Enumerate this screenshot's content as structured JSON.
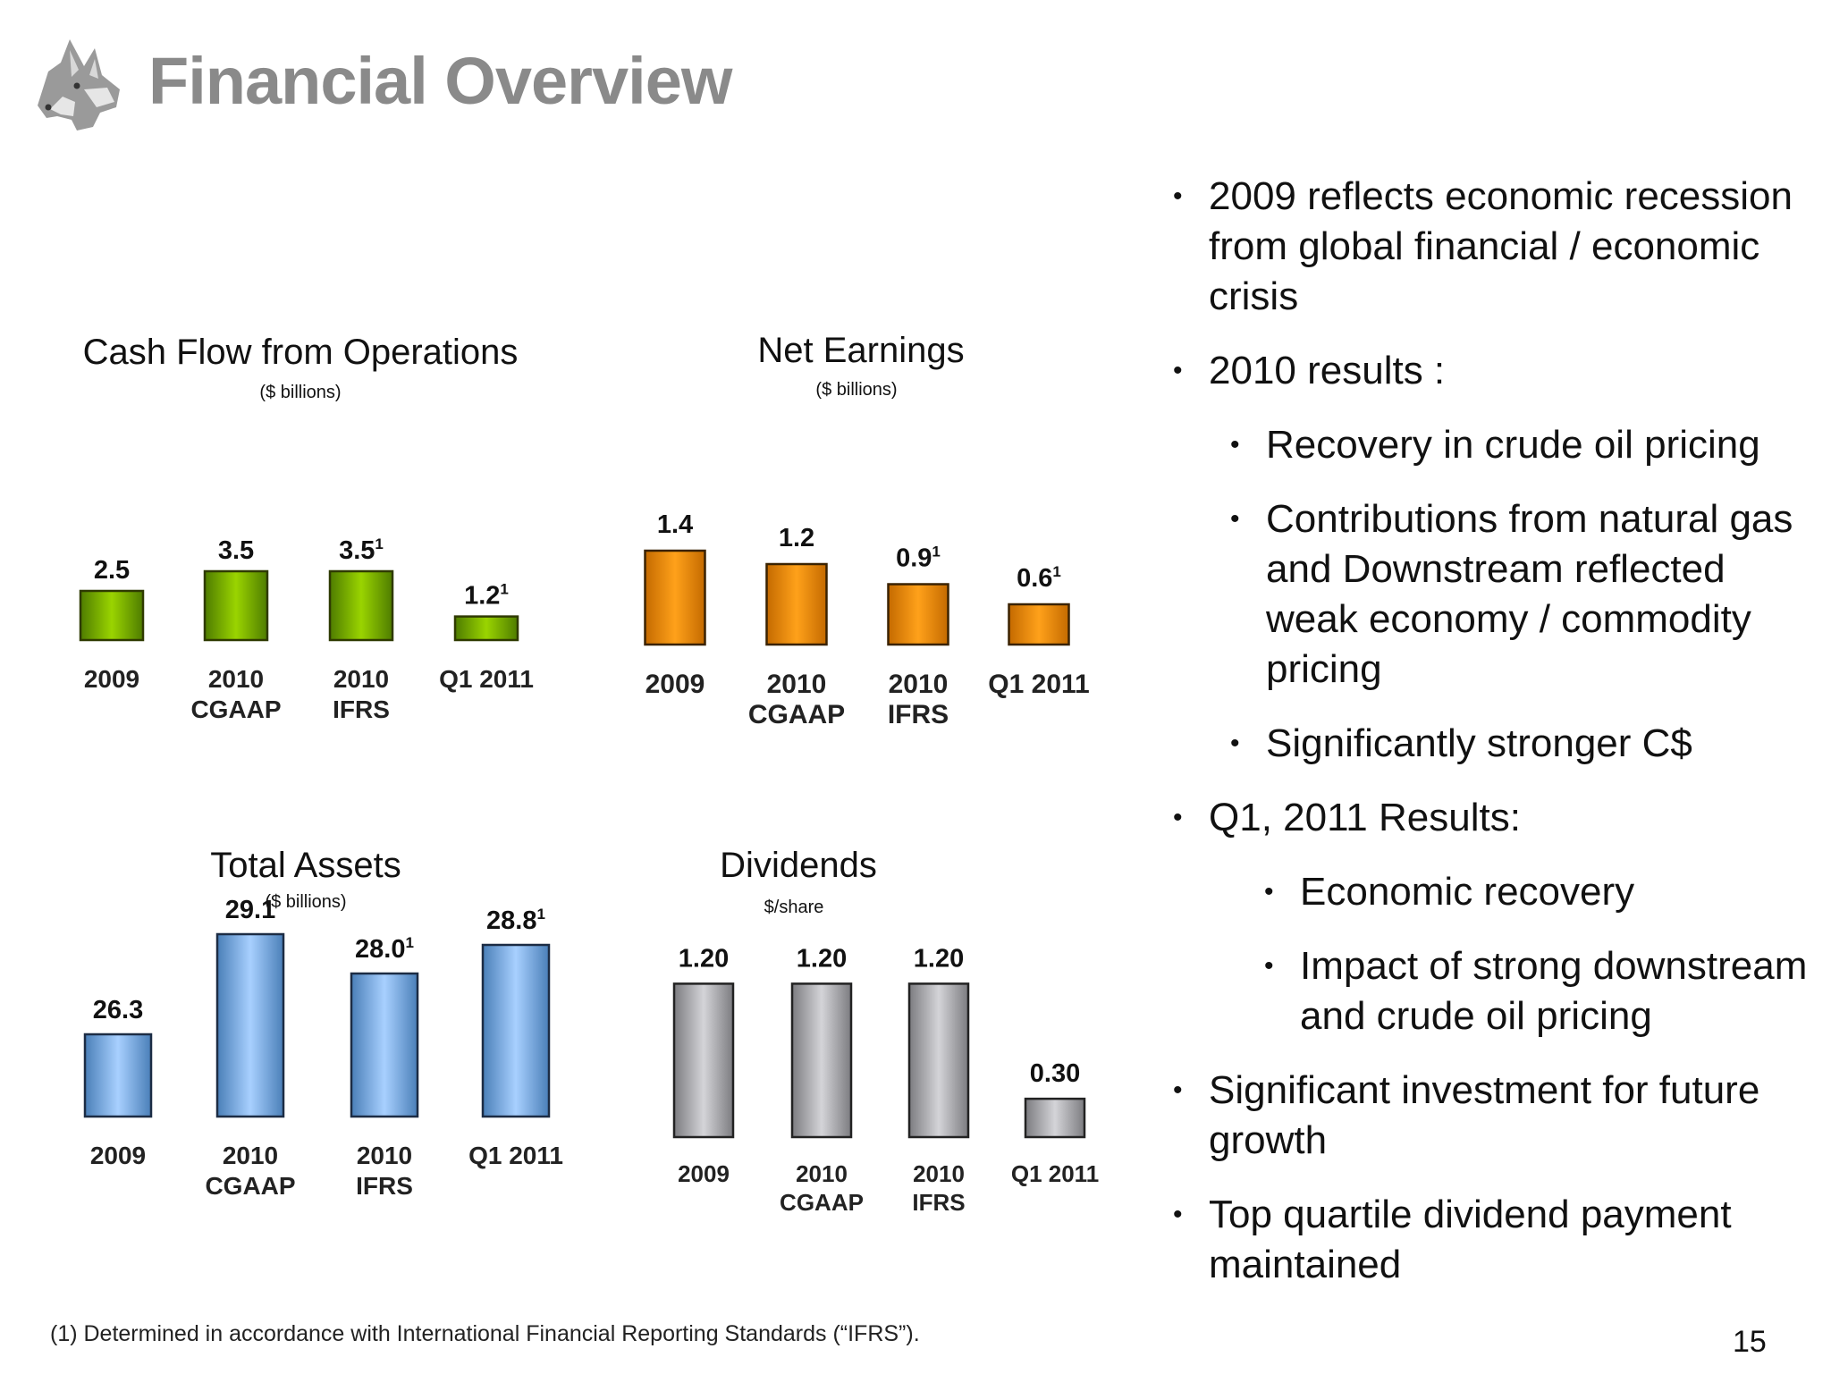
{
  "title": "Financial Overview",
  "charts": [
    {
      "id": "cfo",
      "title": "Cash Flow from Operations",
      "unit": "($ billions)",
      "labels": [
        "2.5",
        "3.5",
        "3.5",
        "1.2"
      ],
      "footnote_marks": [
        "",
        "",
        "1",
        "1"
      ],
      "categories": [
        [
          "2009"
        ],
        [
          "2010",
          "CGAAP"
        ],
        [
          "2010",
          "IFRS"
        ],
        [
          "Q1 2011"
        ]
      ]
    },
    {
      "id": "ne",
      "title": "Net Earnings",
      "unit": "($ billions)",
      "labels": [
        "1.4",
        "1.2",
        "0.9",
        "0.6"
      ],
      "footnote_marks": [
        "",
        "",
        "1",
        "1"
      ],
      "categories": [
        [
          "2009"
        ],
        [
          "2010",
          "CGAAP"
        ],
        [
          "2010",
          "IFRS"
        ],
        [
          "Q1 2011"
        ]
      ]
    },
    {
      "id": "ta",
      "title": "Total Assets",
      "unit": "($ billions)",
      "labels": [
        "26.3",
        "29.1",
        "28.0",
        "28.8"
      ],
      "footnote_marks": [
        "",
        "",
        "1",
        "1"
      ],
      "categories": [
        [
          "2009"
        ],
        [
          "2010",
          "CGAAP"
        ],
        [
          "2010",
          "IFRS"
        ],
        [
          "Q1 2011"
        ]
      ]
    },
    {
      "id": "div",
      "title": "Dividends",
      "unit": "$/share",
      "labels": [
        "1.20",
        "1.20",
        "1.20",
        "0.30"
      ],
      "footnote_marks": [
        "",
        "",
        "",
        ""
      ],
      "categories": [
        [
          "2009"
        ],
        [
          "2010",
          "CGAAP"
        ],
        [
          "2010",
          "IFRS"
        ],
        [
          "Q1 2011"
        ]
      ]
    }
  ],
  "chart_data": [
    {
      "type": "bar",
      "title": "Cash Flow from Operations",
      "unit": "($ billions)",
      "categories": [
        "2009",
        "2010 CGAAP",
        "2010 IFRS",
        "Q1 2011"
      ],
      "values": [
        2.5,
        3.5,
        3.5,
        1.2
      ],
      "color": "#7dbb00"
    },
    {
      "type": "bar",
      "title": "Net Earnings",
      "unit": "($ billions)",
      "categories": [
        "2009",
        "2010 CGAAP",
        "2010 IFRS",
        "Q1 2011"
      ],
      "values": [
        1.4,
        1.2,
        0.9,
        0.6
      ],
      "color": "#f08c00"
    },
    {
      "type": "bar",
      "title": "Total Assets",
      "unit": "($ billions)",
      "categories": [
        "2009",
        "2010 CGAAP",
        "2010 IFRS",
        "Q1 2011"
      ],
      "values": [
        26.3,
        29.1,
        28.0,
        28.8
      ],
      "color": "#7fb2ea"
    },
    {
      "type": "bar",
      "title": "Dividends",
      "unit": "$/share",
      "categories": [
        "2009",
        "2010 CGAAP",
        "2010 IFRS",
        "Q1 2011"
      ],
      "values": [
        1.2,
        1.2,
        1.2,
        0.3
      ],
      "color": "#a8a8ac"
    }
  ],
  "bullets": [
    "2009 reflects economic recession from global financial / economic crisis",
    "2010 results :",
    "Recovery in crude oil pricing",
    "Contributions from natural gas and Downstream reflected weak economy / commodity pricing",
    "Significantly stronger C$",
    "Q1, 2011 Results:",
    "Economic recovery",
    "Impact of strong downstream and crude oil pricing",
    "Significant investment for future growth",
    "Top quartile dividend payment maintained"
  ],
  "footnote": "(1) Determined in accordance with International Financial Reporting Standards (“IFRS”).",
  "page_number": "15"
}
